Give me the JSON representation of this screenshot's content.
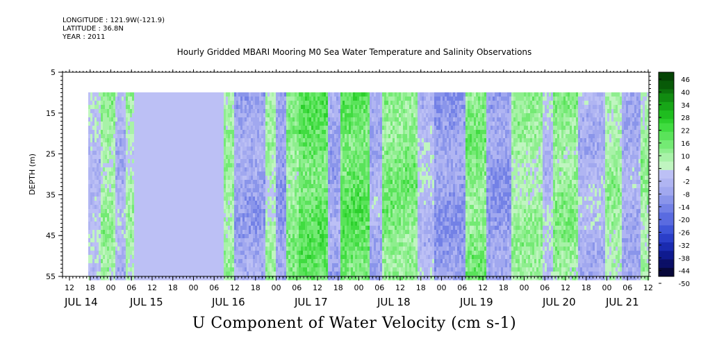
{
  "header": {
    "longitude": "LONGITUDE : 121.9W(-121.9)",
    "latitude": "LATITUDE : 36.8N",
    "year": "YEAR : 2011"
  },
  "chart_data": {
    "type": "heatmap",
    "title": "Hourly Gridded MBARI Mooring M0 Sea Water Temperature and Salinity Observations",
    "xlabel": "U Component of Water Velocity (cm s-1)",
    "ylabel": "DEPTH (m)",
    "y_axis": {
      "ticks": [
        5,
        15,
        25,
        35,
        45,
        55
      ],
      "range": [
        5,
        55
      ],
      "inverted": true,
      "data_range": [
        10,
        55
      ]
    },
    "x_axis": {
      "start_hour_label": "12",
      "hour_ticks": [
        "12",
        "18",
        "00",
        "06",
        "12",
        "18",
        "00",
        "06",
        "12",
        "18",
        "00",
        "06",
        "12",
        "18",
        "00",
        "06",
        "12",
        "18",
        "00",
        "06",
        "12",
        "18",
        "00",
        "06",
        "12",
        "18",
        "00",
        "06",
        "12",
        "18",
        "00",
        "06"
      ],
      "date_labels": [
        "JUL 14",
        "JUL 15",
        "JUL 16",
        "JUL 17",
        "JUL 18",
        "JUL 19",
        "JUL 20",
        "JUL 21"
      ],
      "range": [
        "2011-07-14 09:00",
        "2011-07-21 18:00"
      ],
      "data_start": "2011-07-14 18:00"
    },
    "colorbar": {
      "ticks": [
        "46",
        "40",
        "34",
        "28",
        "22",
        "16",
        "10",
        "4",
        "-2",
        "-8",
        "-14",
        "-20",
        "-26",
        "-32",
        "-38",
        "-44",
        "-50"
      ],
      "range": [
        -50,
        46
      ],
      "step": 2,
      "colors_neg": [
        "#08083a",
        "#0b0f66",
        "#0f1a8f",
        "#1a2bb0",
        "#2a3ec8",
        "#3f55d8",
        "#5a6be0",
        "#7381e6",
        "#8a95ea",
        "#a1a8ef",
        "#b0b5f2",
        "#bcc0f5"
      ],
      "colors_pos": [
        "#c0f5c0",
        "#a8f2a8",
        "#8eee8e",
        "#74ea74",
        "#5ae35a",
        "#40dc40",
        "#2ccf2c",
        "#1fbd1f",
        "#17a617",
        "#118c11",
        "#0c720c",
        "#085a08",
        "#054405"
      ]
    }
  }
}
